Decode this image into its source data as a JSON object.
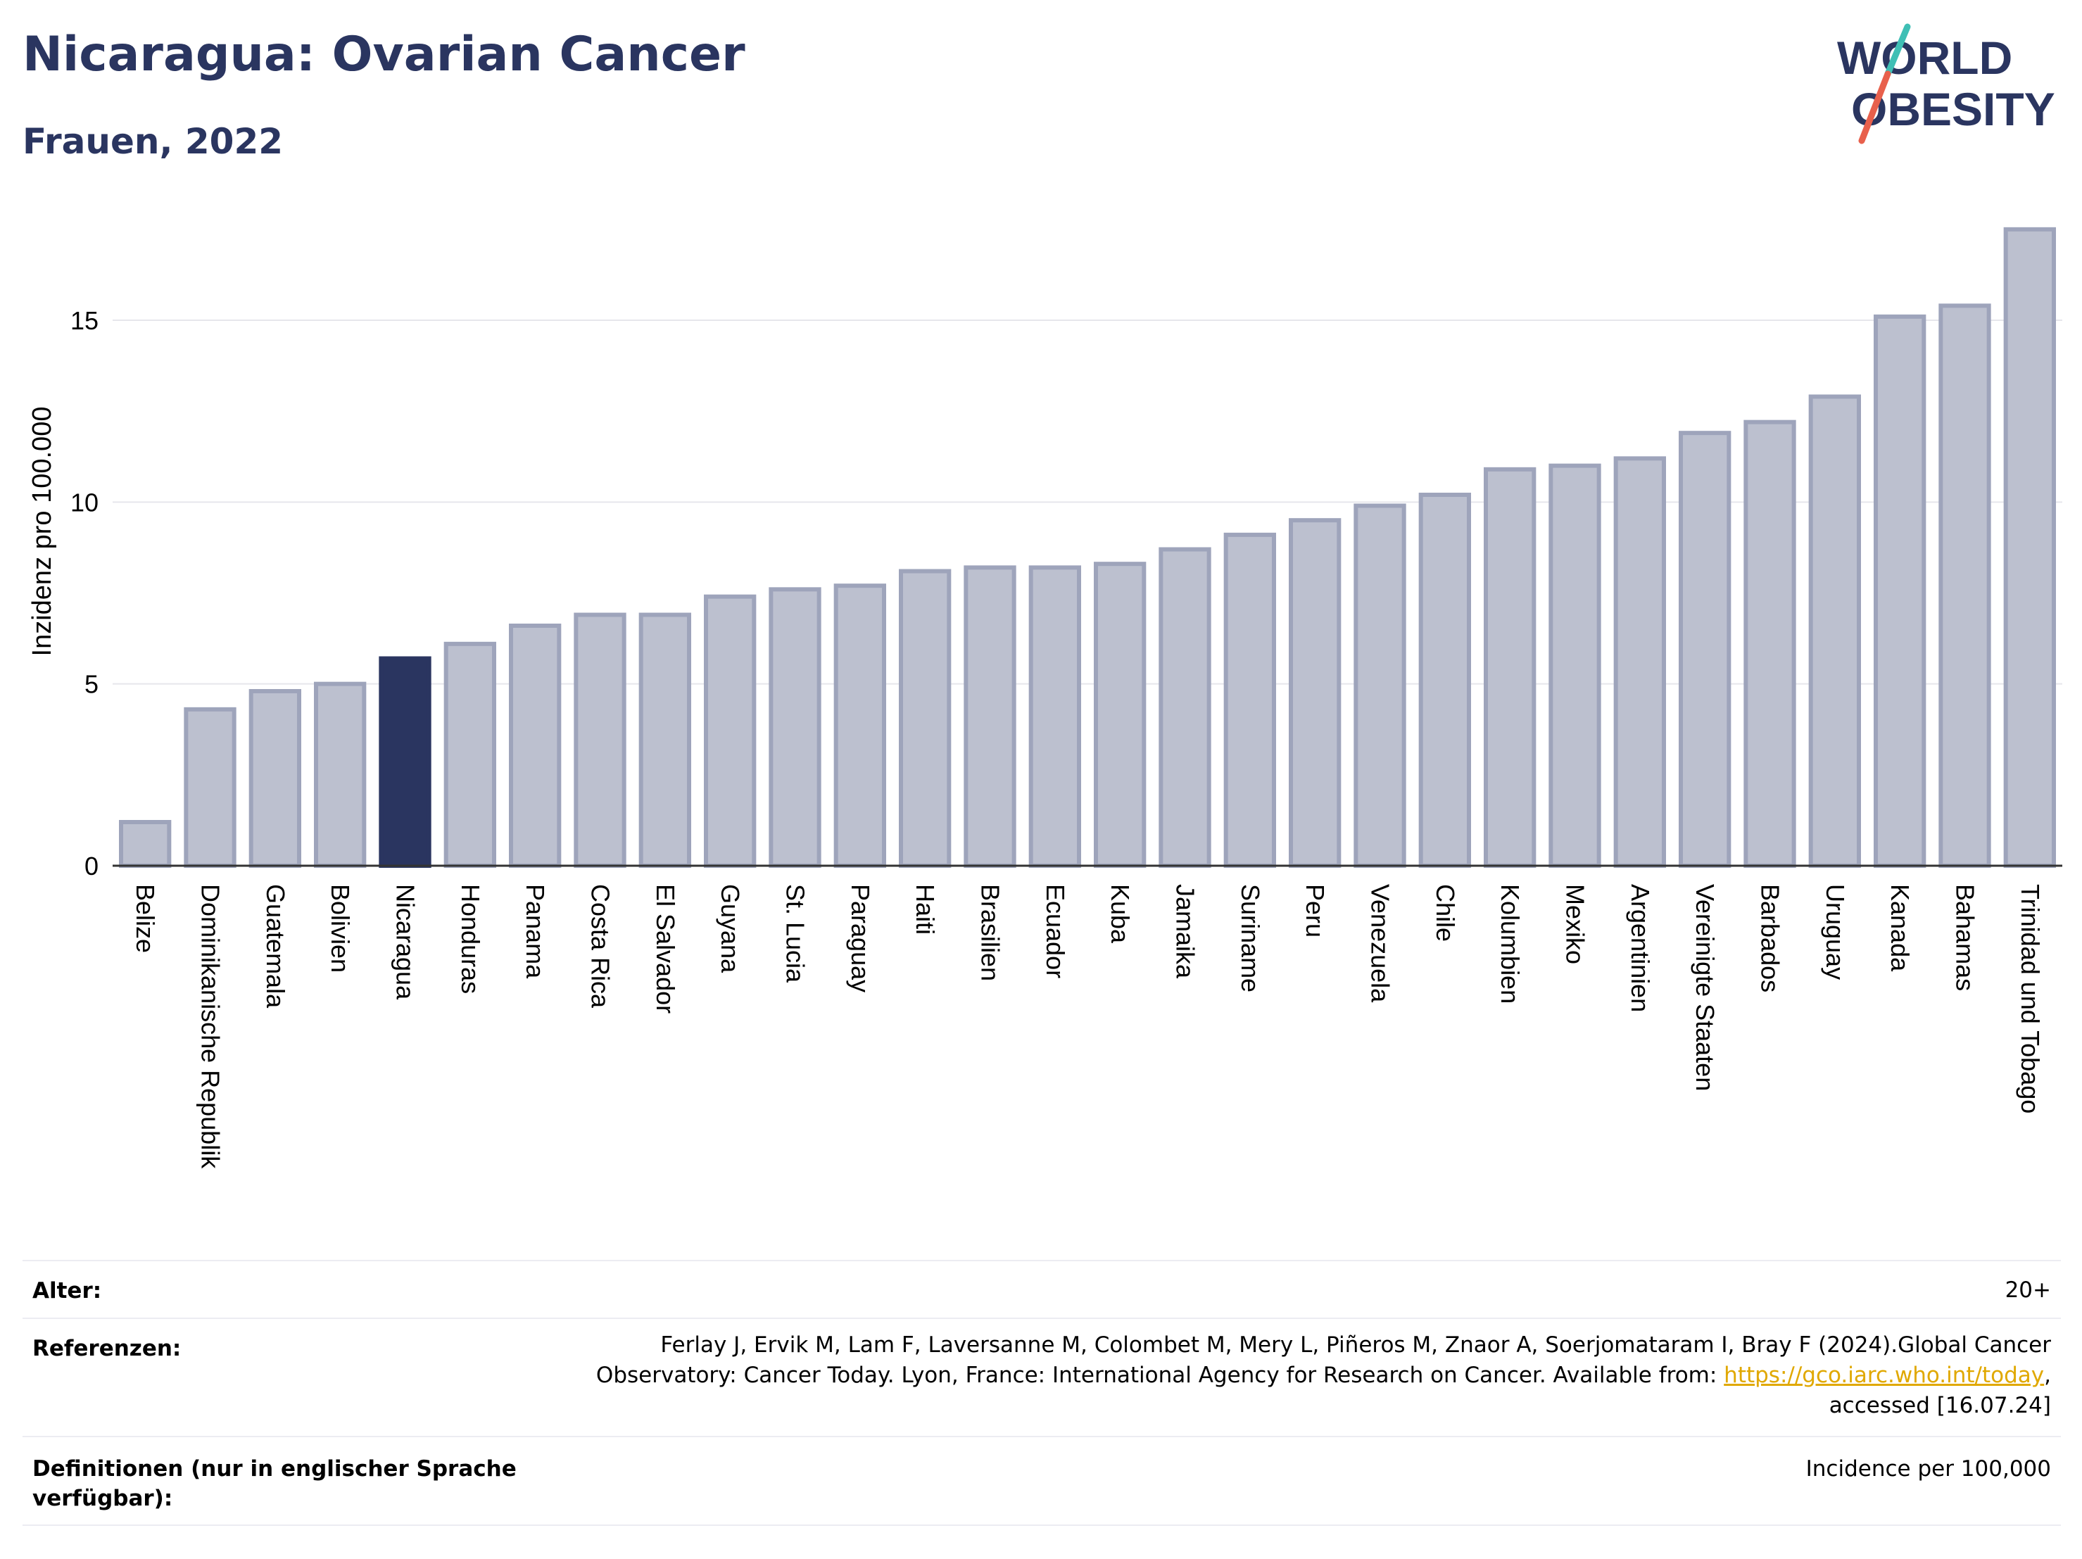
{
  "header": {
    "title": "Nicaragua: Ovarian Cancer",
    "subtitle": "Frauen, 2022"
  },
  "logo": {
    "line1": "WORLD",
    "line2": "OBESITY",
    "accent_colors": [
      "#3fbfb5",
      "#e8604c"
    ]
  },
  "colors": {
    "highlight": "#2a3560",
    "bar_fill": "#bcc0cf",
    "bar_stroke": "#9ea4bb",
    "grid": "#e6e6ec",
    "axis": "#333333"
  },
  "chart_data": {
    "type": "bar",
    "title": "Nicaragua: Ovarian Cancer",
    "subtitle": "Frauen, 2022",
    "ylabel": "Inzidenz pro 100.000",
    "xlabel": "",
    "ylim": [
      0,
      18
    ],
    "yticks": [
      0,
      5,
      10,
      15
    ],
    "grid": true,
    "highlight_category": "Nicaragua",
    "categories": [
      "Belize",
      "Dominikanische Republik",
      "Guatemala",
      "Bolivien",
      "Nicaragua",
      "Honduras",
      "Panama",
      "Costa Rica",
      "El Salvador",
      "Guyana",
      "St. Lucia",
      "Paraguay",
      "Haiti",
      "Brasilien",
      "Ecuador",
      "Kuba",
      "Jamaika",
      "Suriname",
      "Peru",
      "Venezuela",
      "Chile",
      "Kolumbien",
      "Mexiko",
      "Argentinien",
      "Vereinigte Staaten",
      "Barbados",
      "Uruguay",
      "Kanada",
      "Bahamas",
      "Trinidad und Tobago"
    ],
    "values": [
      1.2,
      4.3,
      4.8,
      5.0,
      5.7,
      6.1,
      6.6,
      6.9,
      6.9,
      7.4,
      7.6,
      7.7,
      8.1,
      8.2,
      8.2,
      8.3,
      8.7,
      9.1,
      9.5,
      9.9,
      10.2,
      10.9,
      11.0,
      11.2,
      11.9,
      12.2,
      12.9,
      15.1,
      15.4,
      17.5
    ]
  },
  "footer": {
    "age_label": "Alter:",
    "age_value": "20+",
    "ref_label": "Referenzen:",
    "ref_line1": "Ferlay J, Ervik M, Lam F, Laversanne M, Colombet M, Mery L, Piñeros M, Znaor A, Soerjomataram I, Bray F (2024).Global Cancer",
    "ref_line2_pre": "Observatory: Cancer Today. Lyon, France: International Agency for Research on Cancer. Available from: ",
    "ref_link": "https://gco.iarc.who.int/today",
    "ref_line2_post": ",",
    "ref_line3": "accessed [16.07.24]",
    "def_label_line1": "Definitionen (nur in englischer Sprache",
    "def_label_line2": "verfügbar):",
    "def_value": "Incidence per 100,000"
  }
}
